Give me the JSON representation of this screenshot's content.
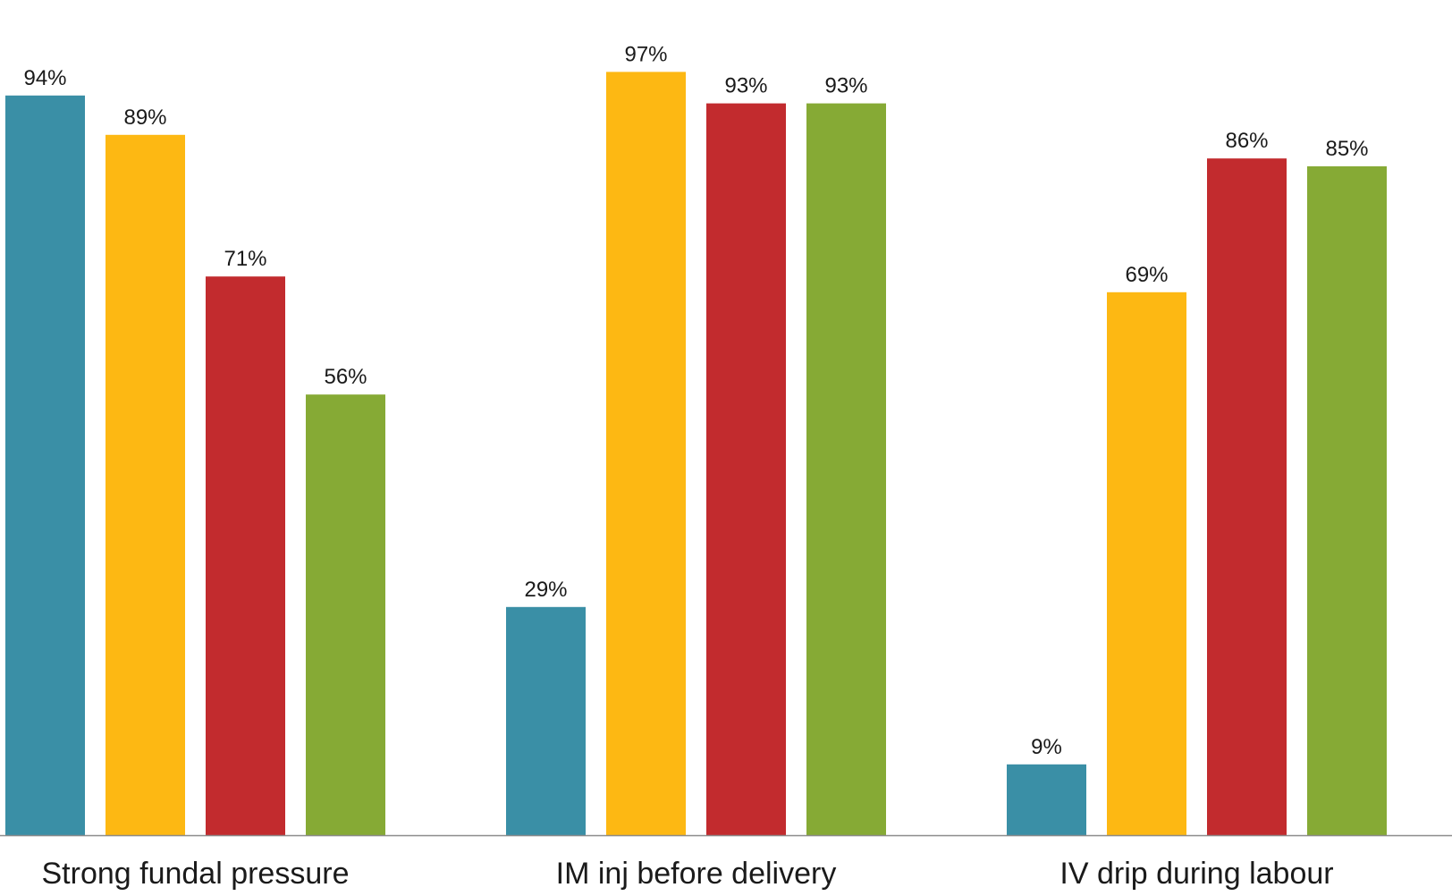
{
  "chart_data": {
    "type": "bar",
    "title": "",
    "xlabel": "",
    "ylabel": "",
    "ylim": [
      0,
      100
    ],
    "grid": false,
    "legend": "none",
    "categories": [
      "Strong fundal pressure",
      "IM inj before delivery",
      "IV drip during labour"
    ],
    "series": [
      {
        "color": "#3A8FA6",
        "values": [
          94,
          29,
          9
        ]
      },
      {
        "color": "#FDB813",
        "values": [
          89,
          97,
          69
        ]
      },
      {
        "color": "#C22B2E",
        "values": [
          71,
          93,
          86
        ]
      },
      {
        "color": "#86AA35",
        "values": [
          56,
          93,
          85
        ]
      }
    ],
    "data_labels": [
      [
        "94%",
        "29%",
        "9%"
      ],
      [
        "89%",
        "97%",
        "69%"
      ],
      [
        "71%",
        "93%",
        "86%"
      ],
      [
        "56%",
        "93%",
        "85%"
      ]
    ]
  }
}
